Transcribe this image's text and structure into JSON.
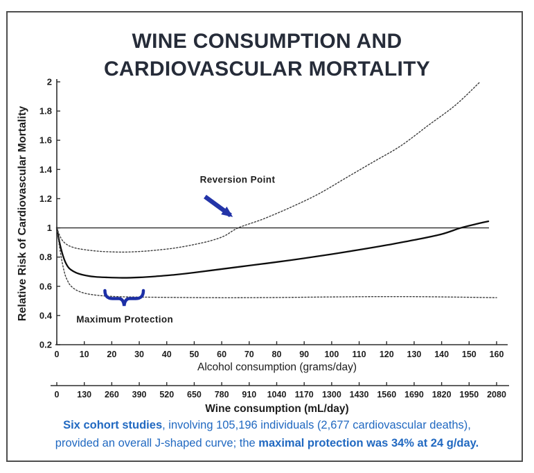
{
  "title": {
    "line1": "WINE CONSUMPTION AND",
    "line2": "CARDIOVASCULAR MORTALITY"
  },
  "colors": {
    "title": "#262c39",
    "axis": "#2b2b2b",
    "solid_curve": "#0d0d0d",
    "ci_curve": "#3c3c3c",
    "annotation_text": "#24357e",
    "arrow": "#2334a8",
    "brace": "#1c2fa6",
    "caption": "#2169c1"
  },
  "chart_data": {
    "type": "line",
    "title": "Wine consumption and cardiovascular mortality",
    "xlabel": "Alcohol consumption (grams/day)",
    "x2label": "Wine consumption (mL/day)",
    "ylabel": "Relative Risk of Cardiovascular Mortality",
    "xlim": [
      0,
      160
    ],
    "ylim": [
      0.2,
      2
    ],
    "grid": false,
    "reference_line_y": 1,
    "x_ticks": [
      0,
      10,
      20,
      30,
      40,
      50,
      60,
      70,
      80,
      90,
      100,
      110,
      120,
      130,
      140,
      150,
      160
    ],
    "x2_ticks": [
      0,
      130,
      260,
      390,
      520,
      650,
      780,
      910,
      1040,
      1170,
      1300,
      1430,
      1560,
      1690,
      1820,
      1950,
      2080
    ],
    "y_ticks": [
      2,
      1.8,
      1.6,
      1.4,
      1.2,
      1,
      0.8,
      0.6,
      0.4,
      0.2
    ],
    "series": [
      {
        "name": "relative-risk",
        "style": "solid",
        "points": [
          [
            0,
            1.0
          ],
          [
            1,
            0.9
          ],
          [
            2,
            0.825
          ],
          [
            3,
            0.77
          ],
          [
            4,
            0.735
          ],
          [
            5,
            0.715
          ],
          [
            7,
            0.693
          ],
          [
            10,
            0.676
          ],
          [
            14,
            0.665
          ],
          [
            18,
            0.661
          ],
          [
            24,
            0.658
          ],
          [
            30,
            0.661
          ],
          [
            36,
            0.668
          ],
          [
            43,
            0.679
          ],
          [
            50,
            0.694
          ],
          [
            60,
            0.718
          ],
          [
            70,
            0.742
          ],
          [
            80,
            0.766
          ],
          [
            90,
            0.792
          ],
          [
            100,
            0.82
          ],
          [
            110,
            0.85
          ],
          [
            120,
            0.882
          ],
          [
            130,
            0.917
          ],
          [
            140,
            0.957
          ],
          [
            147,
            1.0
          ],
          [
            153,
            1.028
          ],
          [
            157,
            1.045
          ]
        ]
      },
      {
        "name": "upper-confidence-bound",
        "style": "dotted",
        "points": [
          [
            0,
            1.0
          ],
          [
            1,
            0.95
          ],
          [
            2,
            0.915
          ],
          [
            3,
            0.895
          ],
          [
            4,
            0.882
          ],
          [
            5,
            0.873
          ],
          [
            7,
            0.861
          ],
          [
            10,
            0.851
          ],
          [
            14,
            0.842
          ],
          [
            18,
            0.837
          ],
          [
            24,
            0.834
          ],
          [
            30,
            0.838
          ],
          [
            36,
            0.847
          ],
          [
            43,
            0.862
          ],
          [
            50,
            0.886
          ],
          [
            56,
            0.912
          ],
          [
            61,
            0.945
          ],
          [
            66,
            1.0
          ],
          [
            75,
            1.06
          ],
          [
            85,
            1.14
          ],
          [
            95,
            1.23
          ],
          [
            105,
            1.34
          ],
          [
            115,
            1.45
          ],
          [
            125,
            1.56
          ],
          [
            135,
            1.7
          ],
          [
            145,
            1.84
          ],
          [
            154,
            2.0
          ]
        ]
      },
      {
        "name": "lower-confidence-bound",
        "style": "dotted",
        "points": [
          [
            0,
            1.0
          ],
          [
            1,
            0.87
          ],
          [
            2,
            0.76
          ],
          [
            3,
            0.68
          ],
          [
            4,
            0.635
          ],
          [
            5,
            0.605
          ],
          [
            7,
            0.575
          ],
          [
            10,
            0.553
          ],
          [
            14,
            0.54
          ],
          [
            18,
            0.533
          ],
          [
            24,
            0.528
          ],
          [
            30,
            0.526
          ],
          [
            40,
            0.524
          ],
          [
            55,
            0.522
          ],
          [
            70,
            0.522
          ],
          [
            85,
            0.524
          ],
          [
            100,
            0.527
          ],
          [
            115,
            0.529
          ],
          [
            130,
            0.529
          ],
          [
            145,
            0.526
          ],
          [
            160,
            0.522
          ]
        ]
      }
    ],
    "annotations": [
      {
        "id": "reversion",
        "text": "Reversion Point",
        "x": 65,
        "y": 1.0
      },
      {
        "id": "max-protection",
        "text": "Maximum Protection",
        "x": 24,
        "y": 0.55,
        "brace_span_x": [
          17.5,
          31.5
        ]
      }
    ]
  },
  "caption": {
    "line1": [
      {
        "text": "Six cohort studies",
        "bold": true
      },
      {
        "text": ", involving 105,196 individuals (2,677 cardiovascular deaths),",
        "bold": false
      }
    ],
    "line2": [
      {
        "text": "provided an overall J-shaped curve; the ",
        "bold": false
      },
      {
        "text": "maximal protection was 34% at 24 g/day.",
        "bold": true
      }
    ]
  }
}
